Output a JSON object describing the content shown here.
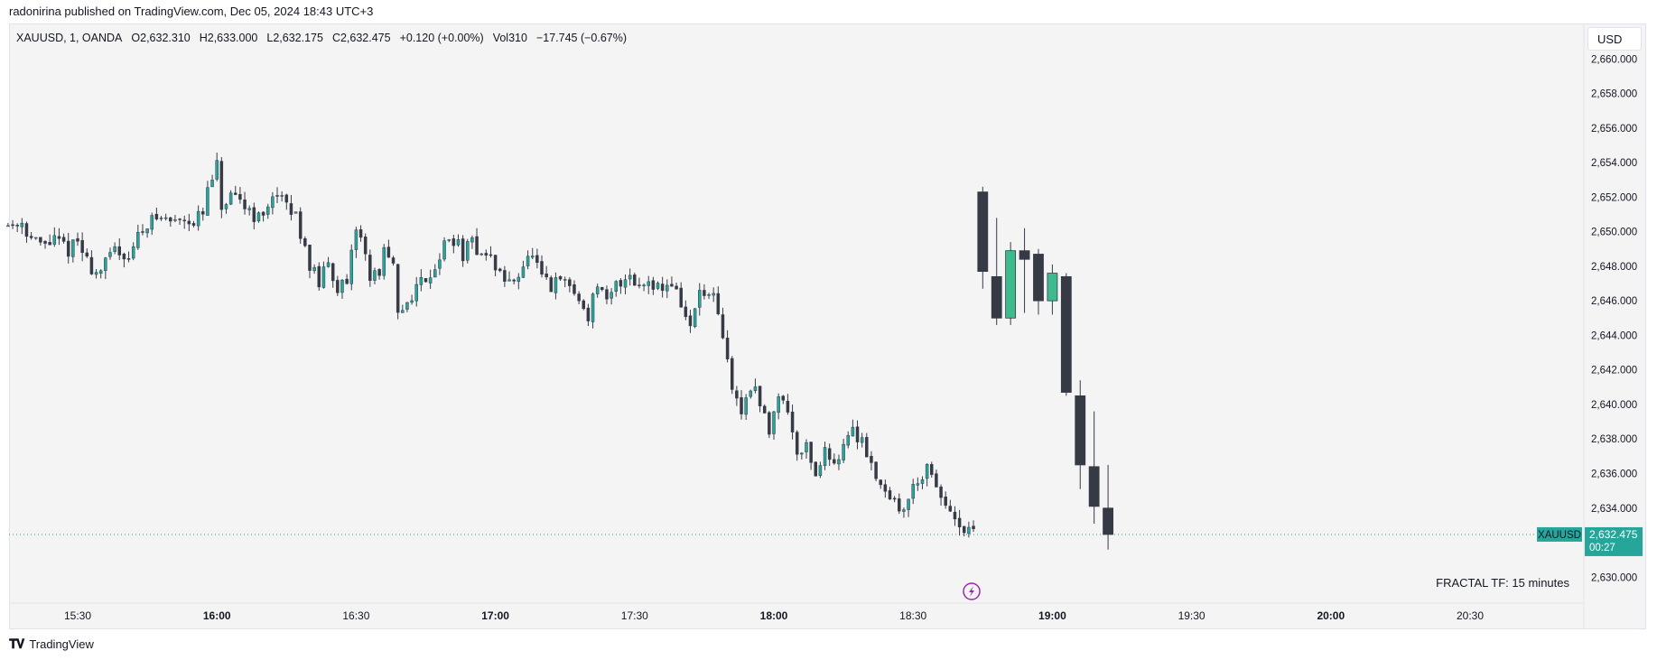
{
  "header": {
    "publish_line": "radonirina published on TradingView.com, Dec 05, 2024 18:43 UTC+3"
  },
  "legend": {
    "symbol": "XAUUSD, 1, OANDA",
    "open": "O2,632.310",
    "high": "H2,633.000",
    "low": "L2,632.175",
    "close": "C2,632.475",
    "change": "+0.120 (+0.00%)",
    "volume": "Vol310",
    "vol_change": "−17.745 (−0.67%)"
  },
  "currency": "USD",
  "price_tag": {
    "symbol": "XAUUSD",
    "price": "2,632.475",
    "countdown": "00:27"
  },
  "indicator_label": "FRACTAL TF: 15 minutes",
  "footer": {
    "brand": "TradingView"
  },
  "colors": {
    "up": "#26a69a",
    "fractal_up": "#3fb98e",
    "down": "#363a45",
    "bg": "#f4f4f4",
    "tag": "#26a69a",
    "event": "#9c27b0"
  },
  "icons": {
    "event_marker": "lightning-icon",
    "logo": "tradingview-logo-icon"
  },
  "chart_data": {
    "type": "candlestick",
    "symbol": "XAUUSD",
    "timeframe": "1",
    "y_axis": {
      "ticks": [
        "2,660.000",
        "2,658.000",
        "2,656.000",
        "2,654.000",
        "2,652.000",
        "2,650.000",
        "2,648.000",
        "2,646.000",
        "2,644.000",
        "2,642.000",
        "2,640.000",
        "2,638.000",
        "2,636.000",
        "2,634.000",
        "2,632.000",
        "2,630.000"
      ],
      "range": [
        2628.5,
        2662.0
      ]
    },
    "x_axis": {
      "ticks": [
        "15:30",
        "16:00",
        "16:30",
        "17:00",
        "17:30",
        "18:00",
        "18:30",
        "19:00",
        "19:30",
        "20:00",
        "20:30"
      ],
      "bold": [
        "16:00",
        "17:00",
        "18:00",
        "19:00",
        "20:00"
      ]
    },
    "x_ticks_minutes": [
      930,
      960,
      990,
      1020,
      1050,
      1080,
      1110,
      1140,
      1170,
      1200,
      1230
    ],
    "minute_series_start": "15:17",
    "minute_series_end": "18:43",
    "minute_path": [
      [
        915,
        2650.4
      ],
      [
        918,
        2650.6
      ],
      [
        920,
        2649.6
      ],
      [
        922,
        2649.2
      ],
      [
        925,
        2649.5
      ],
      [
        928,
        2649.0
      ],
      [
        930,
        2649.4
      ],
      [
        932,
        2648.3
      ],
      [
        934,
        2647.6
      ],
      [
        936,
        2648.1
      ],
      [
        938,
        2649.0
      ],
      [
        941,
        2648.6
      ],
      [
        943,
        2649.7
      ],
      [
        945,
        2650.6
      ],
      [
        948,
        2650.8
      ],
      [
        950,
        2650.6
      ],
      [
        953,
        2650.9
      ],
      [
        955,
        2650.6
      ],
      [
        957,
        2651.0
      ],
      [
        958,
        2652.3
      ],
      [
        960,
        2653.7
      ],
      [
        961,
        2651.4
      ],
      [
        963,
        2651.8
      ],
      [
        966,
        2651.6
      ],
      [
        968,
        2651.0
      ],
      [
        970,
        2650.7
      ],
      [
        972,
        2652.4
      ],
      [
        975,
        2651.4
      ],
      [
        977,
        2650.9
      ],
      [
        979,
        2649.2
      ],
      [
        980,
        2648.1
      ],
      [
        982,
        2647.0
      ],
      [
        984,
        2648.1
      ],
      [
        986,
        2646.9
      ],
      [
        988,
        2646.7
      ],
      [
        990,
        2650.3
      ],
      [
        992,
        2648.9
      ],
      [
        993,
        2647.2
      ],
      [
        995,
        2647.8
      ],
      [
        996,
        2648.8
      ],
      [
        998,
        2647.8
      ],
      [
        999,
        2645.0
      ],
      [
        1001,
        2646.0
      ],
      [
        1003,
        2646.8
      ],
      [
        1005,
        2647.4
      ],
      [
        1007,
        2648.0
      ],
      [
        1009,
        2649.2
      ],
      [
        1011,
        2649.6
      ],
      [
        1013,
        2648.7
      ],
      [
        1015,
        2649.3
      ],
      [
        1017,
        2648.8
      ],
      [
        1019,
        2648.4
      ],
      [
        1021,
        2647.6
      ],
      [
        1023,
        2646.9
      ],
      [
        1026,
        2648.1
      ],
      [
        1028,
        2648.6
      ],
      [
        1030,
        2647.2
      ],
      [
        1032,
        2646.7
      ],
      [
        1034,
        2647.2
      ],
      [
        1036,
        2646.9
      ],
      [
        1038,
        2646.0
      ],
      [
        1040,
        2645.2
      ],
      [
        1042,
        2647.0
      ],
      [
        1044,
        2645.7
      ],
      [
        1046,
        2646.9
      ],
      [
        1049,
        2647.6
      ],
      [
        1051,
        2646.8
      ],
      [
        1053,
        2647.3
      ],
      [
        1056,
        2646.7
      ],
      [
        1058,
        2647.1
      ],
      [
        1060,
        2645.8
      ],
      [
        1062,
        2644.4
      ],
      [
        1064,
        2646.5
      ],
      [
        1067,
        2646.0
      ],
      [
        1069,
        2643.8
      ],
      [
        1071,
        2641.0
      ],
      [
        1073,
        2639.5
      ],
      [
        1075,
        2641.2
      ],
      [
        1077,
        2640.0
      ],
      [
        1079,
        2638.5
      ],
      [
        1081,
        2640.8
      ],
      [
        1083,
        2639.6
      ],
      [
        1085,
        2637.4
      ],
      [
        1087,
        2637.6
      ],
      [
        1089,
        2636.0
      ],
      [
        1091,
        2637.2
      ],
      [
        1093,
        2636.7
      ],
      [
        1095,
        2637.7
      ],
      [
        1097,
        2638.4
      ],
      [
        1099,
        2638.0
      ],
      [
        1101,
        2636.6
      ],
      [
        1103,
        2635.4
      ],
      [
        1105,
        2634.8
      ],
      [
        1107,
        2633.7
      ],
      [
        1109,
        2634.6
      ],
      [
        1111,
        2635.7
      ],
      [
        1113,
        2636.2
      ],
      [
        1115,
        2635.0
      ],
      [
        1117,
        2634.3
      ],
      [
        1119,
        2633.0
      ],
      [
        1121,
        2632.5
      ],
      [
        1123,
        2632.475
      ]
    ],
    "fractal_candles_15m": [
      {
        "time": "18:45",
        "open": 2652.3,
        "high": 2652.6,
        "low": 2646.7,
        "close": 2647.7,
        "dir": "down"
      },
      {
        "time": "18:48",
        "open": 2647.4,
        "high": 2650.8,
        "low": 2644.6,
        "close": 2645.0,
        "dir": "down"
      },
      {
        "time": "18:51",
        "open": 2645.0,
        "high": 2649.4,
        "low": 2644.6,
        "close": 2648.9,
        "dir": "up"
      },
      {
        "time": "18:54",
        "open": 2648.9,
        "high": 2650.2,
        "low": 2645.3,
        "close": 2648.4,
        "dir": "down"
      },
      {
        "time": "18:57",
        "open": 2648.7,
        "high": 2649.0,
        "low": 2645.2,
        "close": 2646.0,
        "dir": "down"
      },
      {
        "time": "19:00",
        "open": 2646.0,
        "high": 2648.1,
        "low": 2645.2,
        "close": 2647.6,
        "dir": "up"
      },
      {
        "time": "19:03",
        "open": 2647.4,
        "high": 2647.6,
        "low": 2640.5,
        "close": 2640.7,
        "dir": "down"
      },
      {
        "time": "19:06",
        "open": 2640.5,
        "high": 2641.4,
        "low": 2635.1,
        "close": 2636.5,
        "dir": "down"
      },
      {
        "time": "19:09",
        "open": 2636.4,
        "high": 2639.6,
        "low": 2633.1,
        "close": 2634.1,
        "dir": "down"
      },
      {
        "time": "19:12",
        "open": 2634.0,
        "high": 2636.5,
        "low": 2631.6,
        "close": 2632.475,
        "dir": "down"
      }
    ],
    "last_price": 2632.475,
    "grid": false
  }
}
